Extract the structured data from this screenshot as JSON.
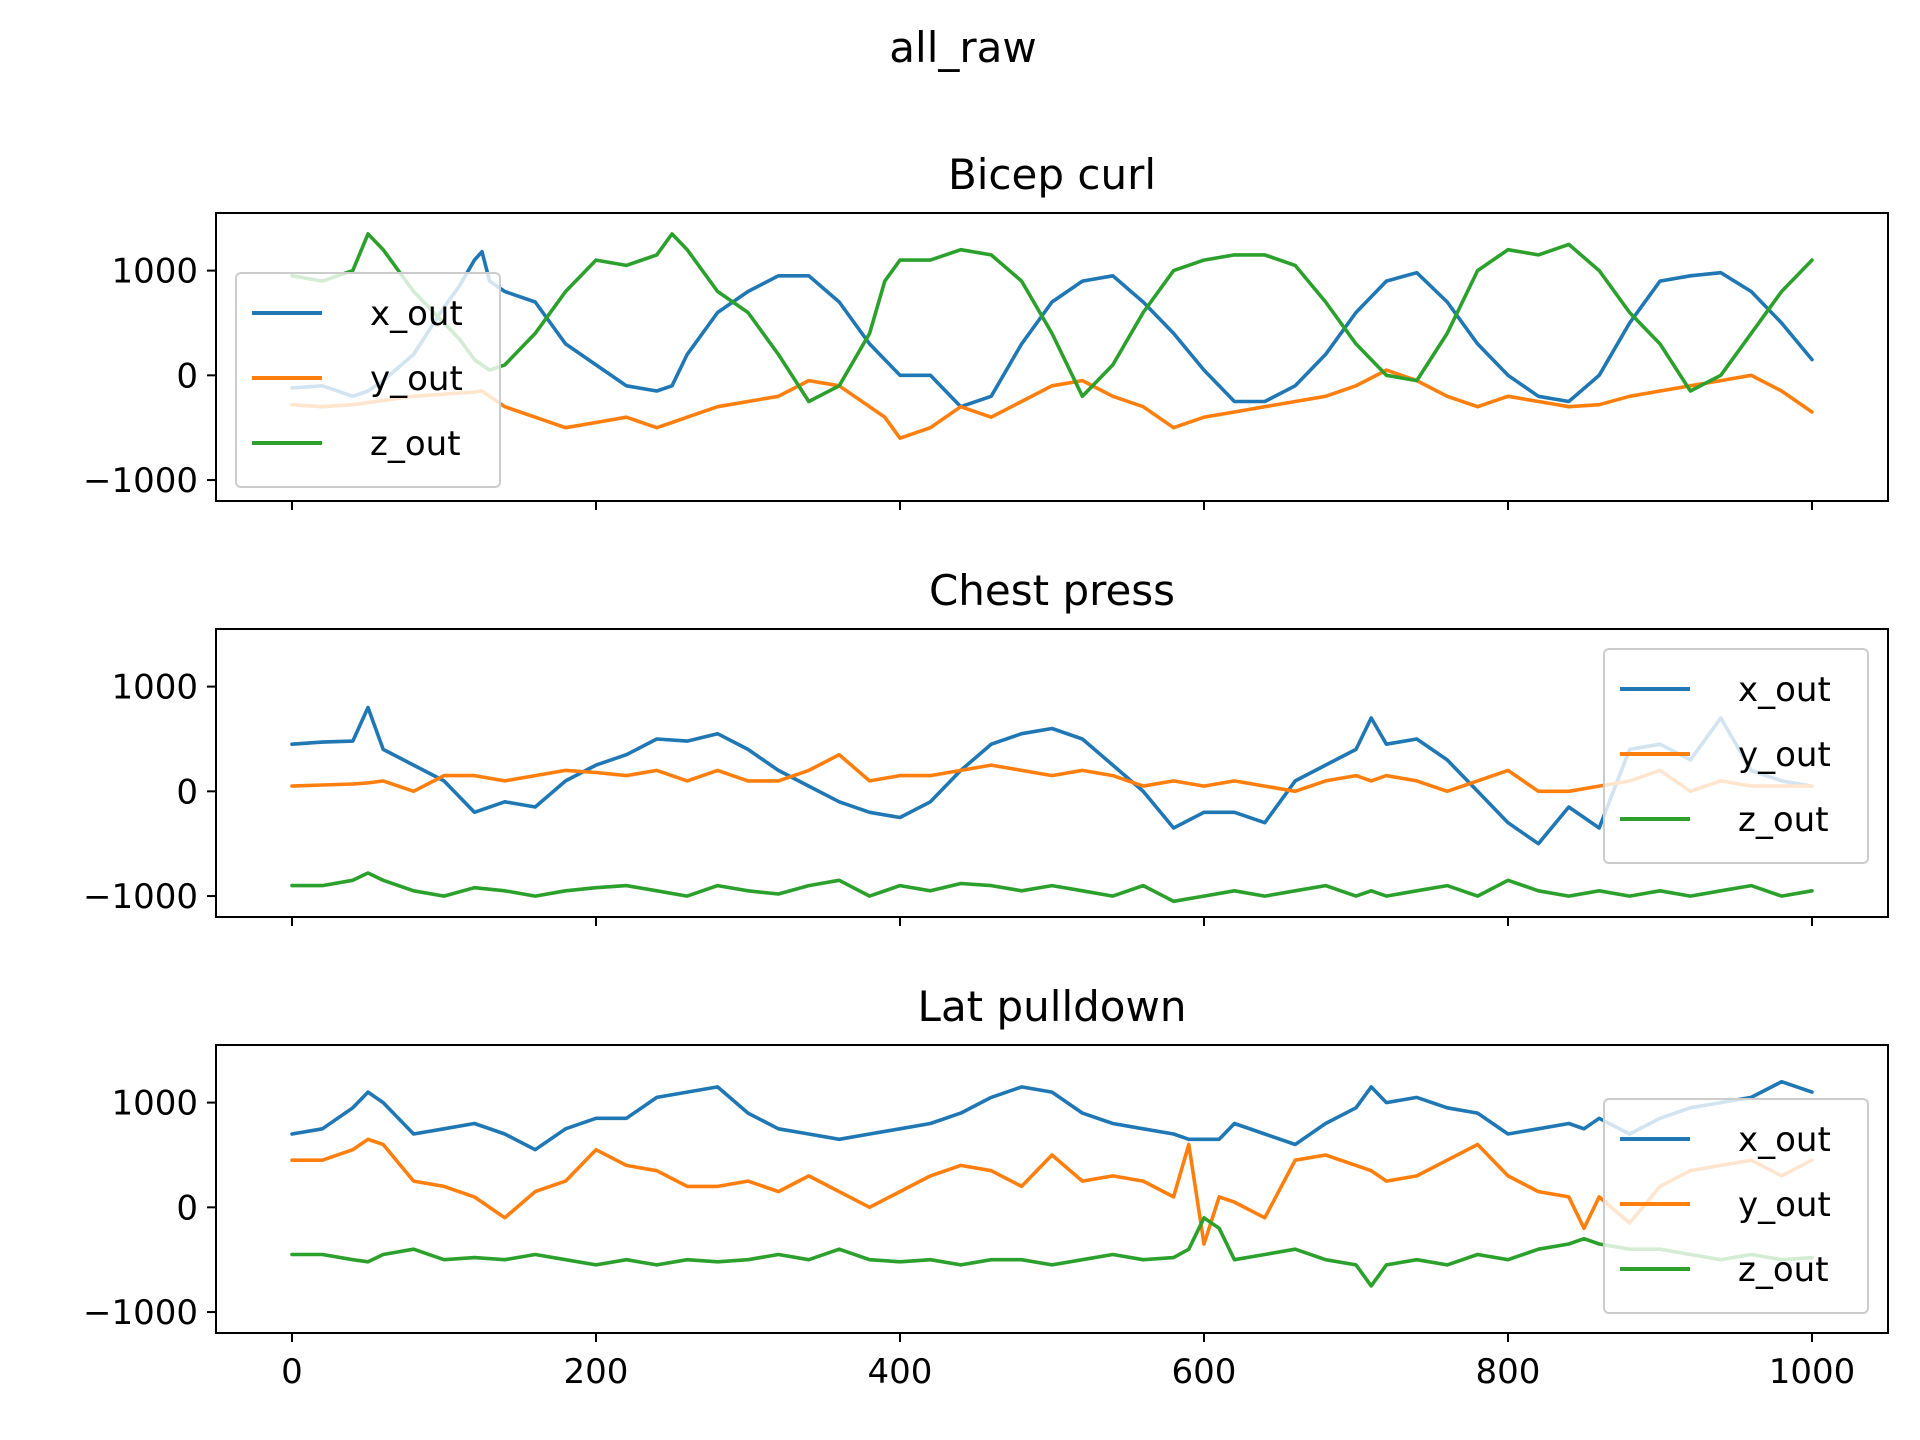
{
  "chart_data": {
    "type": "line",
    "title": "all_raw",
    "shared_x": true,
    "xlim": [
      -50,
      1050
    ],
    "xticks": [
      0,
      200,
      400,
      600,
      800,
      1000
    ],
    "colors": {
      "x_out": "#1f77b4",
      "y_out": "#ff7f0e",
      "z_out": "#2ca02c"
    },
    "subplots": [
      {
        "title": "Bicep curl",
        "ylim": [
          -1200,
          1550
        ],
        "yticks": [
          -1000,
          0,
          1000
        ],
        "legend_position": "upper-left",
        "x": [
          0,
          20,
          40,
          50,
          60,
          80,
          100,
          110,
          120,
          125,
          130,
          140,
          160,
          180,
          200,
          220,
          240,
          250,
          260,
          280,
          300,
          320,
          340,
          360,
          380,
          390,
          400,
          420,
          440,
          460,
          480,
          500,
          520,
          540,
          560,
          580,
          600,
          620,
          640,
          660,
          680,
          700,
          720,
          740,
          760,
          780,
          800,
          820,
          840,
          860,
          880,
          900,
          920,
          940,
          960,
          980,
          1000
        ],
        "series": [
          {
            "name": "x_out",
            "values": [
              -120,
              -100,
              -200,
              -150,
              -50,
              200,
              650,
              850,
              1100,
              1180,
              900,
              800,
              700,
              300,
              100,
              -100,
              -150,
              -100,
              200,
              600,
              800,
              950,
              950,
              700,
              300,
              150,
              0,
              0,
              -300,
              -200,
              300,
              700,
              900,
              950,
              700,
              400,
              50,
              -250,
              -250,
              -100,
              200,
              600,
              900,
              980,
              700,
              300,
              0,
              -200,
              -250,
              0,
              500,
              900,
              950,
              980,
              800,
              500,
              150
            ]
          },
          {
            "name": "y_out",
            "values": [
              -280,
              -300,
              -280,
              -260,
              -240,
              -200,
              -180,
              -170,
              -160,
              -150,
              -200,
              -300,
              -400,
              -500,
              -450,
              -400,
              -500,
              -450,
              -400,
              -300,
              -250,
              -200,
              -50,
              -100,
              -300,
              -400,
              -600,
              -500,
              -300,
              -400,
              -250,
              -100,
              -50,
              -200,
              -300,
              -500,
              -400,
              -350,
              -300,
              -250,
              -200,
              -100,
              50,
              -50,
              -200,
              -300,
              -200,
              -250,
              -300,
              -280,
              -200,
              -150,
              -100,
              -50,
              0,
              -150,
              -350
            ]
          },
          {
            "name": "z_out",
            "values": [
              950,
              900,
              1000,
              1350,
              1200,
              800,
              500,
              350,
              150,
              100,
              50,
              100,
              400,
              800,
              1100,
              1050,
              1150,
              1350,
              1200,
              800,
              600,
              200,
              -250,
              -100,
              400,
              900,
              1100,
              1100,
              1200,
              1150,
              900,
              400,
              -200,
              100,
              600,
              1000,
              1100,
              1150,
              1150,
              1050,
              700,
              300,
              0,
              -50,
              400,
              1000,
              1200,
              1150,
              1250,
              1000,
              600,
              300,
              -150,
              0,
              400,
              800,
              1100
            ]
          }
        ]
      },
      {
        "title": "Chest press",
        "ylim": [
          -1200,
          1550
        ],
        "yticks": [
          -1000,
          0,
          1000
        ],
        "legend_position": "upper-right",
        "x": [
          0,
          20,
          40,
          50,
          60,
          80,
          100,
          120,
          140,
          160,
          180,
          200,
          220,
          240,
          260,
          280,
          300,
          320,
          340,
          360,
          380,
          400,
          420,
          440,
          460,
          480,
          500,
          520,
          540,
          560,
          580,
          600,
          620,
          640,
          660,
          680,
          700,
          710,
          720,
          740,
          760,
          780,
          800,
          820,
          840,
          860,
          880,
          900,
          920,
          940,
          960,
          980,
          1000
        ],
        "series": [
          {
            "name": "x_out",
            "values": [
              450,
              470,
              480,
              800,
              400,
              250,
              100,
              -200,
              -100,
              -150,
              100,
              250,
              350,
              500,
              480,
              550,
              400,
              200,
              50,
              -100,
              -200,
              -250,
              -100,
              200,
              450,
              550,
              600,
              500,
              250,
              0,
              -350,
              -200,
              -200,
              -300,
              100,
              250,
              400,
              700,
              450,
              500,
              300,
              0,
              -300,
              -500,
              -150,
              -350,
              400,
              450,
              300,
              700,
              200,
              100,
              50
            ]
          },
          {
            "name": "y_out",
            "values": [
              50,
              60,
              70,
              80,
              100,
              0,
              150,
              150,
              100,
              150,
              200,
              180,
              150,
              200,
              100,
              200,
              100,
              100,
              200,
              350,
              100,
              150,
              150,
              200,
              250,
              200,
              150,
              200,
              150,
              50,
              100,
              50,
              100,
              50,
              0,
              100,
              150,
              100,
              150,
              100,
              0,
              100,
              200,
              0,
              0,
              50,
              100,
              200,
              0,
              100,
              50,
              50,
              50
            ]
          },
          {
            "name": "z_out",
            "values": [
              -900,
              -900,
              -850,
              -780,
              -850,
              -950,
              -1000,
              -920,
              -950,
              -1000,
              -950,
              -920,
              -900,
              -950,
              -1000,
              -900,
              -950,
              -980,
              -900,
              -850,
              -1000,
              -900,
              -950,
              -880,
              -900,
              -950,
              -900,
              -950,
              -1000,
              -900,
              -1050,
              -1000,
              -950,
              -1000,
              -950,
              -900,
              -1000,
              -950,
              -1000,
              -950,
              -900,
              -1000,
              -850,
              -950,
              -1000,
              -950,
              -1000,
              -950,
              -1000,
              -950,
              -900,
              -1000,
              -950
            ]
          }
        ]
      },
      {
        "title": "Lat pulldown",
        "ylim": [
          -1200,
          1550
        ],
        "yticks": [
          -1000,
          0,
          1000
        ],
        "legend_position": "lower-right",
        "x": [
          0,
          20,
          40,
          50,
          60,
          80,
          100,
          120,
          140,
          160,
          180,
          200,
          220,
          240,
          260,
          280,
          300,
          320,
          340,
          360,
          380,
          400,
          420,
          440,
          460,
          480,
          500,
          520,
          540,
          560,
          580,
          590,
          600,
          610,
          620,
          640,
          660,
          680,
          700,
          710,
          720,
          740,
          760,
          780,
          800,
          820,
          840,
          850,
          860,
          880,
          900,
          920,
          940,
          960,
          980,
          1000
        ],
        "series": [
          {
            "name": "x_out",
            "values": [
              700,
              750,
              950,
              1100,
              1000,
              700,
              750,
              800,
              700,
              550,
              750,
              850,
              850,
              1050,
              1100,
              1150,
              900,
              750,
              700,
              650,
              700,
              750,
              800,
              900,
              1050,
              1150,
              1100,
              900,
              800,
              750,
              700,
              650,
              650,
              650,
              800,
              700,
              600,
              800,
              950,
              1150,
              1000,
              1050,
              950,
              900,
              700,
              750,
              800,
              750,
              850,
              700,
              850,
              950,
              1000,
              1050,
              1200,
              1100
            ]
          },
          {
            "name": "y_out",
            "values": [
              450,
              450,
              550,
              650,
              600,
              250,
              200,
              100,
              -100,
              150,
              250,
              550,
              400,
              350,
              200,
              200,
              250,
              150,
              300,
              150,
              0,
              150,
              300,
              400,
              350,
              200,
              500,
              250,
              300,
              250,
              100,
              600,
              -350,
              100,
              50,
              -100,
              450,
              500,
              400,
              350,
              250,
              300,
              450,
              600,
              300,
              150,
              100,
              -200,
              100,
              -150,
              200,
              350,
              400,
              450,
              300,
              450
            ]
          },
          {
            "name": "z_out",
            "values": [
              -450,
              -450,
              -500,
              -520,
              -450,
              -400,
              -500,
              -480,
              -500,
              -450,
              -500,
              -550,
              -500,
              -550,
              -500,
              -520,
              -500,
              -450,
              -500,
              -400,
              -500,
              -520,
              -500,
              -550,
              -500,
              -500,
              -550,
              -500,
              -450,
              -500,
              -480,
              -400,
              -100,
              -200,
              -500,
              -450,
              -400,
              -500,
              -550,
              -750,
              -550,
              -500,
              -550,
              -450,
              -500,
              -400,
              -350,
              -300,
              -350,
              -400,
              -400,
              -450,
              -500,
              -450,
              -500,
              -480
            ]
          }
        ]
      }
    ]
  }
}
